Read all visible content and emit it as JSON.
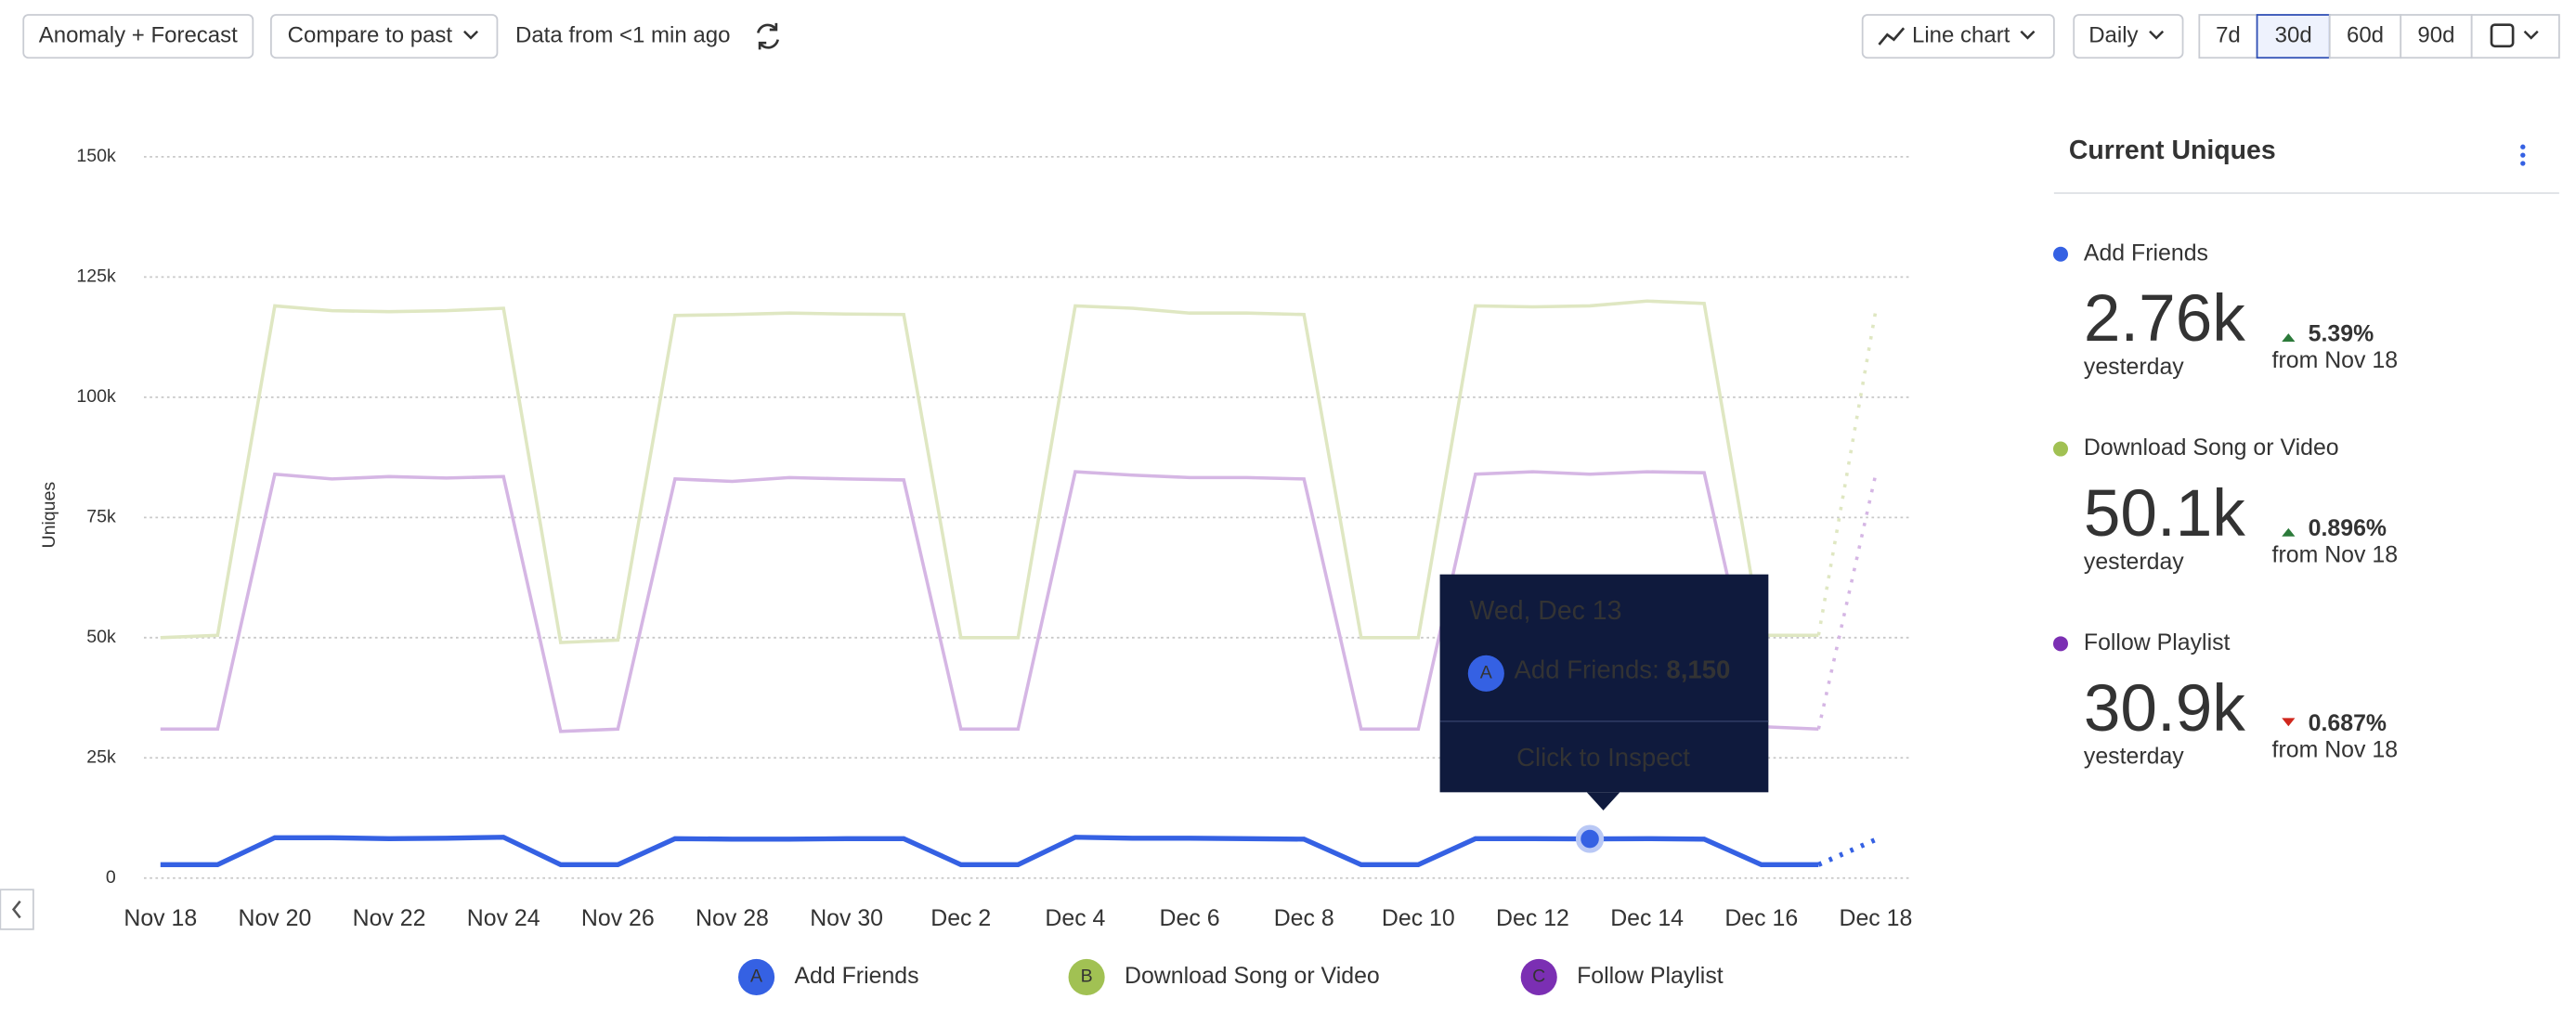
{
  "toolbar": {
    "anomaly": "Anomaly + Forecast",
    "compare": "Compare to past",
    "freshness": "Data from <1 min ago",
    "chart_type": "Line chart",
    "interval": "Daily",
    "ranges": [
      "7d",
      "30d",
      "60d",
      "90d"
    ],
    "selected_range": "30d"
  },
  "chart_data": {
    "type": "line",
    "y_label": "Uniques",
    "categories": [
      "Nov 18",
      null,
      "Nov 20",
      null,
      "Nov 22",
      null,
      "Nov 24",
      null,
      "Nov 26",
      null,
      "Nov 28",
      null,
      "Nov 30",
      null,
      "Dec 2",
      null,
      "Dec 4",
      null,
      "Dec 6",
      null,
      "Dec 8",
      null,
      "Dec 10",
      null,
      "Dec 12",
      null,
      "Dec 14",
      null,
      "Dec 16",
      null,
      "Dec 18"
    ],
    "ylim": [
      0,
      150000
    ],
    "yticks": [
      0,
      {
        "value": 25000,
        "label": "25k"
      },
      {
        "value": 50000,
        "label": "50k"
      },
      {
        "value": 75000,
        "label": "75k"
      },
      {
        "value": 100000,
        "label": "100k"
      },
      {
        "value": 125000,
        "label": "125k"
      },
      {
        "value": 150000,
        "label": "150k"
      }
    ],
    "grid": true,
    "forecast_points": 1,
    "series": [
      {
        "name": "Add Friends",
        "letter": "A",
        "color": "#3561e3",
        "line_color": "#3561e3",
        "values": [
          2800,
          2800,
          8400,
          8400,
          8200,
          8300,
          8500,
          2800,
          2800,
          8200,
          8100,
          8100,
          8200,
          8200,
          2800,
          2800,
          8500,
          8300,
          8300,
          8200,
          8100,
          2800,
          2800,
          8200,
          8200,
          8150,
          8200,
          8100,
          2800,
          2800,
          8000
        ]
      },
      {
        "name": "Download Song or Video",
        "letter": "B",
        "color": "#a1c153",
        "line_color": "#dfe7c2",
        "values": [
          50000,
          50500,
          119000,
          118000,
          117800,
          118000,
          118500,
          49000,
          49500,
          117000,
          117200,
          117500,
          117300,
          117200,
          50000,
          50000,
          119000,
          118500,
          117500,
          117500,
          117200,
          50000,
          50000,
          119000,
          118800,
          119000,
          120000,
          119500,
          50500,
          50500,
          118000
        ]
      },
      {
        "name": "Follow Playlist",
        "letter": "C",
        "color": "#7b2fb3",
        "line_color": "#d5b6e4",
        "values": [
          31000,
          31000,
          84000,
          83000,
          83500,
          83200,
          83500,
          30500,
          31000,
          83000,
          82500,
          83300,
          83000,
          82800,
          31000,
          31000,
          84500,
          83800,
          83300,
          83300,
          83000,
          31000,
          31000,
          84000,
          84500,
          84000,
          84500,
          84300,
          31500,
          31000,
          84000
        ]
      }
    ]
  },
  "tooltip": {
    "date": "Wed, Dec 13",
    "letter": "A",
    "label": "Add Friends: ",
    "value": "8,150",
    "action": "Click to Inspect"
  },
  "panel": {
    "title": "Current Uniques",
    "items": [
      {
        "name": "Add Friends",
        "color": "#3561e3",
        "value": "2.76k",
        "period": "yesterday",
        "change": "5.39%",
        "direction": "up",
        "since": "from Nov 18"
      },
      {
        "name": "Download Song or Video",
        "color": "#a1c153",
        "value": "50.1k",
        "period": "yesterday",
        "change": "0.896%",
        "direction": "up",
        "since": "from Nov 18"
      },
      {
        "name": "Follow Playlist",
        "color": "#7b2fb3",
        "value": "30.9k",
        "period": "yesterday",
        "change": "0.687%",
        "direction": "down",
        "since": "from Nov 18"
      }
    ]
  }
}
